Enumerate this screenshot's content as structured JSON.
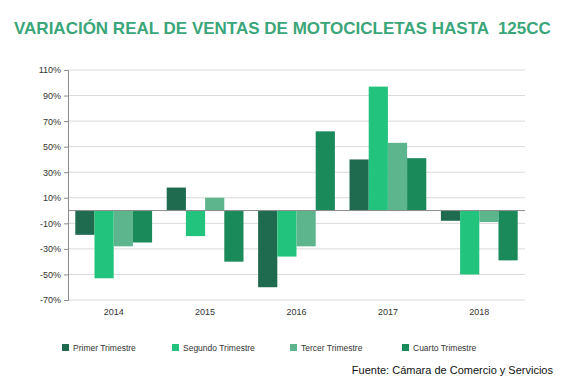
{
  "chart_data": {
    "type": "bar",
    "title": "VARIACIÓN REAL DE VENTAS DE MOTOCICLETAS HASTA  125CC",
    "annotations": [
      "Fuente: Cámara de Comercio y Servicios"
    ],
    "categories": [
      "2014",
      "2015",
      "2016",
      "2017",
      "2018"
    ],
    "series": [
      {
        "name": "Primer Trimestre",
        "color": "#1f6b4f",
        "values": [
          -19,
          18,
          -60,
          40,
          -8
        ]
      },
      {
        "name": "Segundo Trimestre",
        "color": "#22c47d",
        "values": [
          -53,
          -20,
          -36,
          97,
          -50
        ]
      },
      {
        "name": "Tercer Trimestre",
        "color": "#5cb58d",
        "values": [
          -28,
          10,
          -28,
          53,
          -9
        ]
      },
      {
        "name": "Cuarto Trimestre",
        "color": "#1b8a5a",
        "values": [
          -25,
          -40,
          62,
          41,
          -39
        ]
      }
    ],
    "ylim": [
      -70,
      110
    ],
    "yticks": [
      {
        "value": -70,
        "label": "-70%"
      },
      {
        "value": -50,
        "label": "-50%"
      },
      {
        "value": -30,
        "label": "-30%"
      },
      {
        "value": -10,
        "label": "-10%"
      },
      {
        "value": 10,
        "label": "10%"
      },
      {
        "value": 30,
        "label": "30%"
      },
      {
        "value": 50,
        "label": "50%"
      },
      {
        "value": 70,
        "label": "70%"
      },
      {
        "value": 90,
        "label": "90%"
      },
      {
        "value": 110,
        "label": "110%"
      }
    ],
    "grid": true,
    "legend": "bottom"
  }
}
